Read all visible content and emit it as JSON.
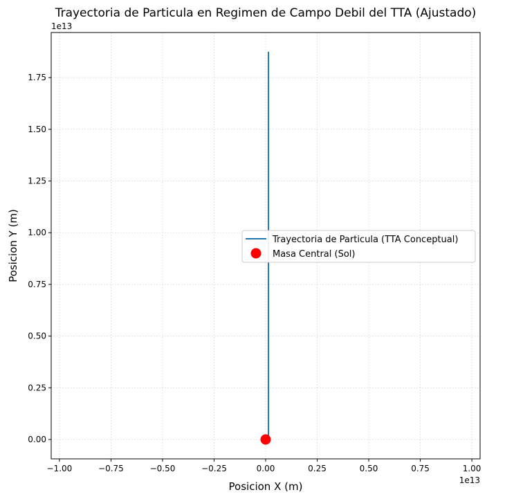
{
  "chart_data": {
    "type": "line",
    "title": "Trayectoria de Particula en Regimen de Campo Debil del TTA (Ajustado)",
    "xlabel": "Posicion X (m)",
    "ylabel": "Posicion Y (m)",
    "x_offset_label": "1e13",
    "y_offset_label": "1e13",
    "xlim": [
      -1.04,
      1.04
    ],
    "ylim": [
      -0.0937,
      1.968
    ],
    "x_ticks": [
      -1.0,
      -0.75,
      -0.5,
      -0.25,
      0.0,
      0.25,
      0.5,
      0.75,
      1.0
    ],
    "x_tick_labels": [
      "−1.00",
      "−0.75",
      "−0.50",
      "−0.25",
      "0.00",
      "0.25",
      "0.50",
      "0.75",
      "1.00"
    ],
    "y_ticks": [
      0.0,
      0.25,
      0.5,
      0.75,
      1.0,
      1.25,
      1.5,
      1.75
    ],
    "y_tick_labels": [
      "0.00",
      "0.25",
      "0.50",
      "0.75",
      "1.00",
      "1.25",
      "1.50",
      "1.75"
    ],
    "grid": true,
    "legend_position": "center-right",
    "series": [
      {
        "name": "Trayectoria de Particula (TTA Conceptual)",
        "kind": "line",
        "color": "#1f77b4",
        "x": [
          0.0135,
          0.0135
        ],
        "y": [
          0.0,
          1.875
        ]
      },
      {
        "name": "Masa Central (Sol)",
        "kind": "marker",
        "color": "#ff0000",
        "x": [
          0.0
        ],
        "y": [
          0.0
        ]
      }
    ]
  }
}
